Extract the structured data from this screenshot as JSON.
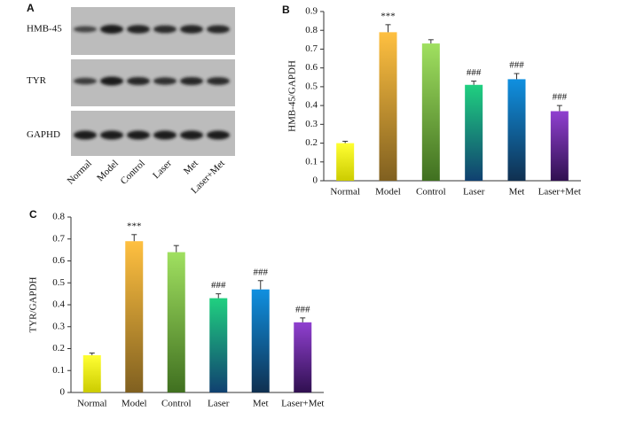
{
  "blot": {
    "panel_label": "A",
    "rows": [
      "HMB-45",
      "TYR",
      "GAPHD"
    ],
    "lanes": [
      "Normal",
      "Model",
      "Control",
      "Laser",
      "Met",
      "Laser+Met"
    ]
  },
  "chart_data": [
    {
      "type": "bar",
      "panel_label": "B",
      "y_label": "HMB-45/GAPDH",
      "categories": [
        "Normal",
        "Model",
        "Control",
        "Laser",
        "Met",
        "Laser+Met"
      ],
      "values": [
        0.2,
        0.79,
        0.73,
        0.51,
        0.54,
        0.37
      ],
      "errors": [
        0.01,
        0.04,
        0.02,
        0.02,
        0.03,
        0.03
      ],
      "annotations": [
        null,
        "***",
        null,
        "###",
        "###",
        "###"
      ],
      "colors": [
        [
          "#ffff33",
          "#cccc00"
        ],
        [
          "#ffc040",
          "#806020"
        ],
        [
          "#a0e060",
          "#407020"
        ],
        [
          "#20d080",
          "#104070"
        ],
        [
          "#1090e0",
          "#103050"
        ],
        [
          "#9040d0",
          "#301050"
        ]
      ],
      "ylim": [
        0,
        0.9
      ],
      "yticks": [
        0,
        0.1,
        0.2,
        0.3,
        0.4,
        0.5,
        0.6,
        0.7,
        0.8,
        0.9
      ]
    },
    {
      "type": "bar",
      "panel_label": "C",
      "y_label": "TYR/GAPDH",
      "categories": [
        "Normal",
        "Model",
        "Control",
        "Laser",
        "Met",
        "Laser+Met"
      ],
      "values": [
        0.17,
        0.69,
        0.64,
        0.43,
        0.47,
        0.32
      ],
      "errors": [
        0.01,
        0.03,
        0.03,
        0.02,
        0.04,
        0.02
      ],
      "annotations": [
        null,
        "***",
        null,
        "###",
        "###",
        "###"
      ],
      "colors": [
        [
          "#ffff33",
          "#cccc00"
        ],
        [
          "#ffc040",
          "#806020"
        ],
        [
          "#a0e060",
          "#407020"
        ],
        [
          "#20d080",
          "#104070"
        ],
        [
          "#1090e0",
          "#103050"
        ],
        [
          "#9040d0",
          "#301050"
        ]
      ],
      "ylim": [
        0,
        0.8
      ],
      "yticks": [
        0,
        0.1,
        0.2,
        0.3,
        0.4,
        0.5,
        0.6,
        0.7,
        0.8
      ]
    }
  ]
}
